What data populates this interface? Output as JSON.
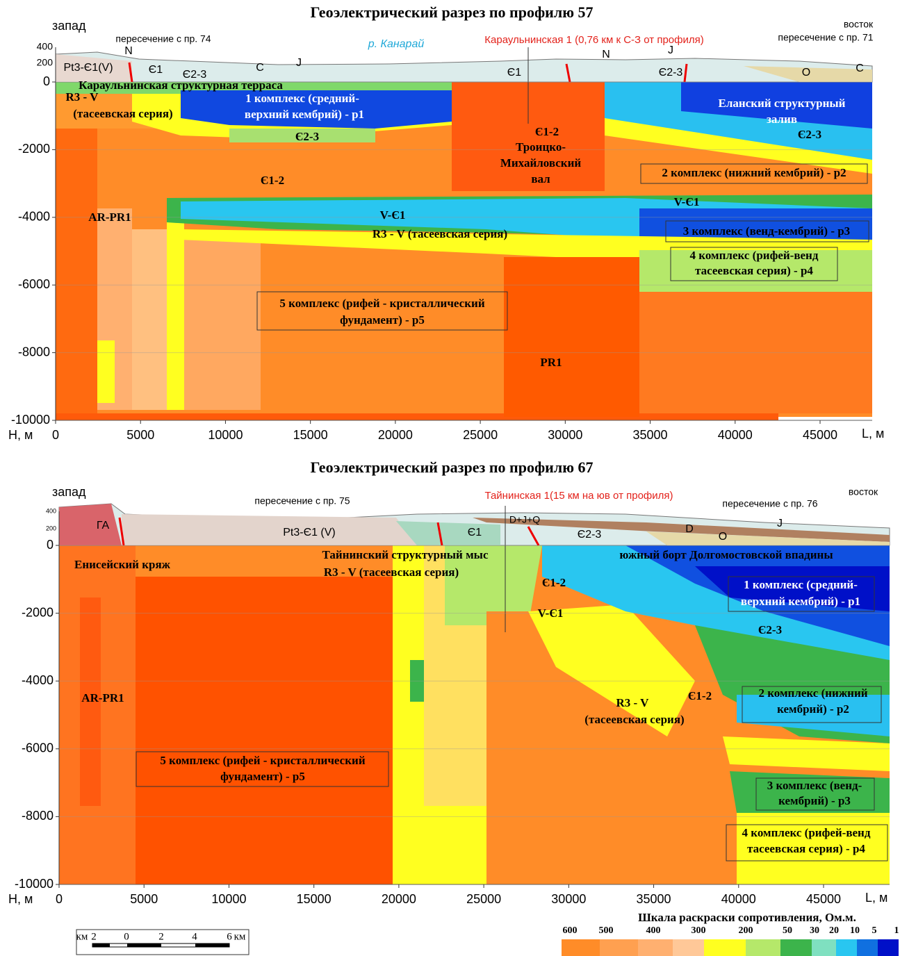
{
  "sections": [
    {
      "title": "Геоэлектрический  разрез по профилю 57",
      "west": "запад",
      "east": "восток",
      "y_label": "Н, м",
      "x_label": "L, м",
      "top_ticks": [
        400,
        200
      ],
      "yticks": [
        0,
        -2000,
        -4000,
        -6000,
        -8000,
        -10000
      ],
      "xticks": [
        0,
        5000,
        10000,
        15000,
        20000,
        25000,
        30000,
        35000,
        40000,
        45000
      ],
      "labels": [
        "пересечение с пр. 74",
        "пересечение с пр. 71",
        "р. Канарай",
        "Караульнинская 1 (0,76 км к С-З от профиля)",
        "Pt3-Є1(V)",
        "N",
        "Є1",
        "Є2-3",
        "C",
        "J",
        "Є1",
        "N",
        "J",
        "Є2-3",
        "O",
        "C",
        "Караульнинская структурная терраса",
        "R3 - V",
        "(тасеевская серия)",
        "1 комплекс (средний-",
        "верхний кембрий) - p1",
        "Є2-3",
        "Є1-2",
        "Троицко-",
        "Михайловский",
        "вал",
        "Еланский структурный",
        "залив",
        "Є2-3",
        "Є1-2",
        "2 комплекс (нижний кембрий) - p2",
        "AR-PR1",
        "V-Є1",
        "R3 - V (тасеевская серия)",
        "V-Є1",
        "3 комплекс (венд-кембрий) - p3",
        "4 комплекс (рифей-венд",
        "тасеевская серия) - p4",
        "5 комплекс (рифей - кристаллический",
        "фундамент) - p5",
        "PR1"
      ]
    },
    {
      "title": "Геоэлектрический  разрез по профилю 67",
      "west": "запад",
      "east": "восток",
      "y_label": "Н, м",
      "x_label": "L, м",
      "top_ticks": [
        400,
        200
      ],
      "yticks": [
        0,
        -2000,
        -4000,
        -6000,
        -8000,
        -10000
      ],
      "xticks": [
        0,
        5000,
        10000,
        15000,
        20000,
        25000,
        30000,
        35000,
        40000,
        45000
      ],
      "labels": [
        "пересечение с пр. 75",
        "пересечение с пр. 76",
        "Тайнинская 1(15 км на юв от профиля)",
        "ГА",
        "Pt3-Є1 (V)",
        "Є1",
        "Є2-3",
        "D+J+Q",
        "D",
        "O",
        "J",
        "Енисейский кряж",
        "Тайнинский структурный мыс",
        "R3 - V (тасеевская серия)",
        "южный борт Долгомостовской впадины",
        "Є1-2",
        "V-Є1",
        "1 комплекс (средний-",
        "верхний кембрий) - p1",
        "Є2-3",
        "AR-PR1",
        "R3 - V",
        "(тасеевская серия)",
        "Є1-2",
        "2 комплекс (нижний",
        "кембрий) - p2",
        "5 комплекс (рифей - кристаллический",
        "фундамент) - p5",
        "3 комплекс (венд-",
        "кембрий) - p3",
        "4 комплекс (рифей-венд",
        "тасеевская серия) - p4"
      ]
    }
  ],
  "legend": {
    "title": "Шкала раскраски сопротивления, Ом.м.",
    "labels": [
      "600",
      "500",
      "400",
      "300",
      "200",
      "50",
      "30",
      "20",
      "10",
      "5",
      "1"
    ]
  },
  "scale_bar": {
    "labels": [
      "км",
      "2",
      "0",
      "2",
      "4",
      "6",
      "км"
    ]
  }
}
